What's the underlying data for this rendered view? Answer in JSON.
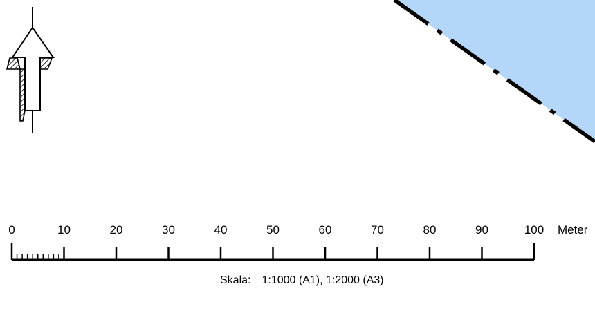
{
  "map": {
    "water_area_color": "#b4d6f8",
    "boundary_line_color": "#000000",
    "boundary_line_style": "dash-dot"
  },
  "north_arrow": {
    "icon": "north-arrow-icon"
  },
  "scale_bar": {
    "ticks": [
      "0",
      "10",
      "20",
      "30",
      "40",
      "50",
      "60",
      "70",
      "80",
      "90",
      "100"
    ],
    "unit": "Meter",
    "caption_prefix": "Skala:",
    "caption_value_1": "1:1000",
    "caption_paper_1": "(A1),",
    "caption_value_2": "1:2000",
    "caption_paper_2": "(A3)"
  }
}
